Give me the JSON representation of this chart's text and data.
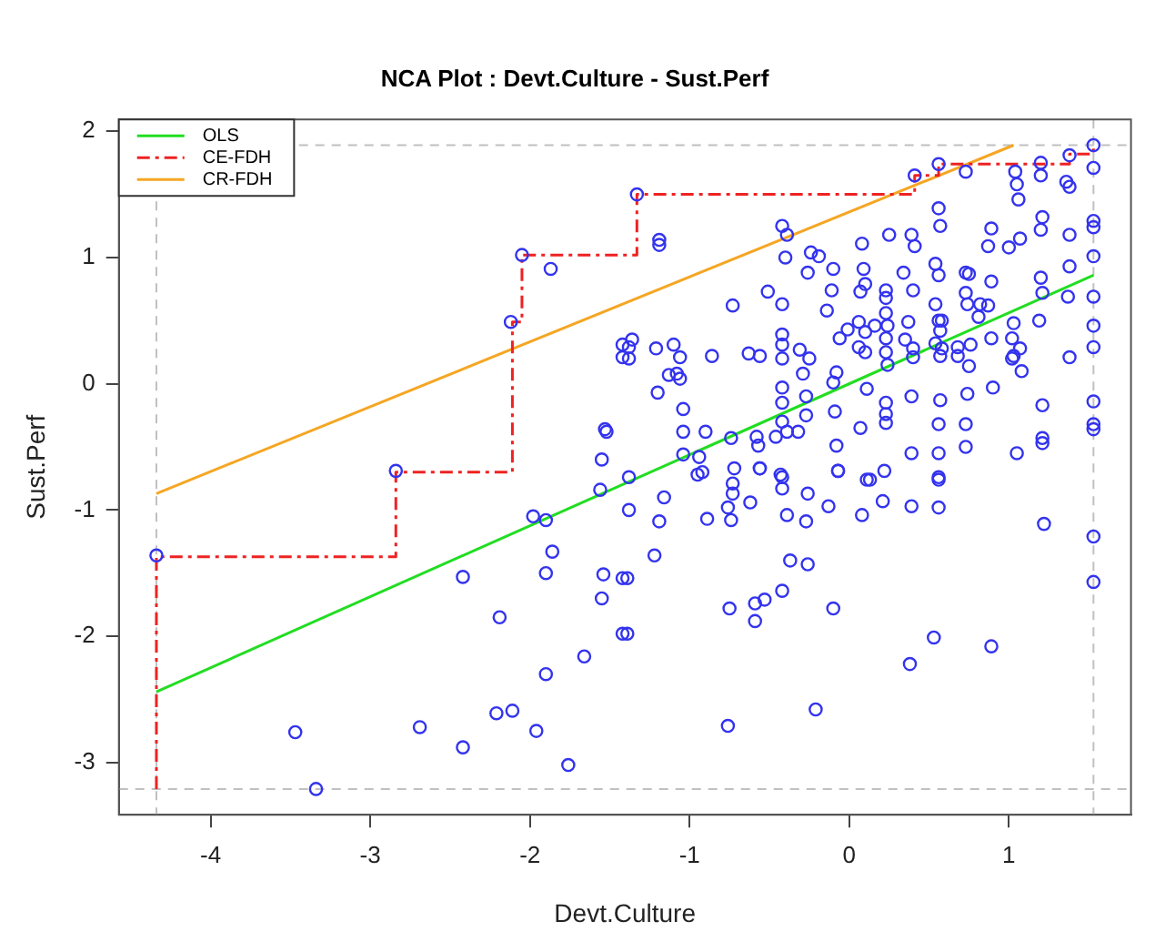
{
  "chart_data": {
    "type": "scatter",
    "title": "NCA Plot : Devt.Culture - Sust.Perf",
    "xlabel": "Devt.Culture",
    "ylabel": "Sust.Perf",
    "xlim": [
      -4.575,
      1.765
    ],
    "xticks": [
      -4,
      -3,
      -2,
      -1,
      0,
      1
    ],
    "ylim": [
      -3.414,
      2.094
    ],
    "yticks": [
      -3,
      -2,
      -1,
      0,
      1,
      2
    ],
    "grid": false,
    "legend": "top left",
    "marker": "circle",
    "ref_lines": [
      {
        "axis": "x",
        "value": -4.34,
        "color": "#c0c0c0",
        "line_style": "dashed"
      },
      {
        "axis": "x",
        "value": 1.53,
        "color": "#c0c0c0",
        "line_style": "dashed"
      },
      {
        "axis": "y",
        "value": -3.21,
        "color": "#c0c0c0",
        "line_style": "dashed"
      },
      {
        "axis": "y",
        "value": 1.89,
        "color": "#c0c0c0",
        "line_style": "dashed"
      }
    ],
    "series": [
      {
        "color": "#3333ee",
        "x": [
          -2.05,
          -1.87,
          -2.12,
          -1.42,
          -1.42,
          -1.53,
          -1.55,
          -2.84,
          -4.34,
          -1.56,
          -1.98,
          -1.9,
          -1.86,
          -2.42,
          -1.9,
          -1.54,
          -1.55,
          -2.19,
          -1.66,
          -1.9,
          -3.47,
          -2.69,
          -2.42,
          -2.21,
          -2.11,
          -1.96,
          -1.76,
          -3.34,
          -1.42,
          -1.42,
          -1.38,
          -1.16,
          -1.38,
          -1.19,
          -1.22,
          -1.39,
          -1.39,
          -0.95,
          -0.73,
          -0.73,
          -0.76,
          -0.89,
          -0.74,
          -0.62,
          -0.56,
          -0.42,
          -0.42,
          -0.26,
          -0.39,
          -0.27,
          -0.13,
          -0.07,
          0.13,
          0.22,
          0.08,
          0.21,
          0.39,
          0.56,
          0.56,
          -0.37,
          -0.26,
          -0.42,
          -0.53,
          -0.59,
          -0.59,
          -0.75,
          -0.1,
          0.53,
          0.38,
          0.89,
          1.22,
          1.53,
          1.53,
          -0.21,
          -0.76,
          -1.33,
          -1.19,
          -1.19,
          -0.42,
          -0.39,
          0.41,
          0.56,
          0.73,
          1.04,
          1.05,
          1.06,
          1.2,
          1.2,
          1.36,
          1.38,
          1.38,
          1.53,
          1.53,
          0.56,
          0.57,
          0.89,
          0.87,
          1.0,
          1.07,
          1.21,
          1.2,
          1.38,
          1.53,
          1.53,
          1.53,
          1.38,
          1.2,
          1.21,
          1.37,
          1.53,
          1.19,
          1.03,
          1.53,
          1.53,
          1.38,
          1.53,
          1.53,
          1.53,
          1.21,
          1.21,
          1.21,
          1.05,
          0.9,
          0.74,
          0.73,
          0.73,
          0.56,
          0.56,
          0.56,
          0.39,
          0.39,
          0.57,
          0.23,
          0.23,
          0.23,
          0.11,
          0.07,
          -0.07,
          -0.08,
          -0.09,
          -0.08,
          -0.1,
          -0.27,
          -0.27,
          -0.42,
          -0.42,
          -0.42,
          -0.46,
          -0.39,
          -0.32,
          -0.58,
          -0.57,
          -0.74,
          -0.9,
          -1.04,
          -1.04,
          -1.04,
          -0.94,
          -0.92,
          -1.2,
          -1.13,
          -1.08,
          -1.06,
          -1.38,
          -1.36,
          -1.38,
          -1.21,
          -1.1,
          -1.06,
          -0.86,
          -0.63,
          -0.56,
          -0.73,
          -0.51,
          -0.42,
          -0.42,
          -0.42,
          -0.42,
          -0.31,
          -0.25,
          -0.29,
          -0.14,
          -0.11,
          -0.26,
          -0.24,
          -0.19,
          -0.4,
          -0.1,
          0.08,
          0.09,
          0.1,
          0.07,
          0.25,
          0.39,
          0.41,
          0.34,
          0.4,
          0.23,
          0.23,
          0.23,
          0.24,
          0.16,
          0.06,
          0.06,
          0.1,
          0.1,
          -0.01,
          -0.06,
          0.23,
          0.23,
          0.24,
          0.37,
          0.35,
          0.4,
          0.54,
          0.56,
          0.54,
          0.56,
          0.58,
          0.57,
          0.54,
          0.57,
          0.68,
          0.73,
          0.75,
          0.73,
          0.74,
          0.81,
          0.82,
          0.87,
          0.89,
          0.89,
          1.02,
          1.03,
          1.07,
          1.08,
          1.02,
          0.76,
          0.75,
          0.68,
          0.4,
          0.58,
          -0.72,
          -0.56,
          -0.43,
          0.11,
          -1.52
        ],
        "values": [
          1.02,
          0.91,
          0.49,
          0.31,
          0.21,
          -0.36,
          -0.6,
          -0.69,
          -1.36,
          -0.84,
          -1.05,
          -1.08,
          -1.33,
          -1.53,
          -1.5,
          -1.51,
          -1.7,
          -1.85,
          -2.16,
          -2.3,
          -2.76,
          -2.72,
          -2.88,
          -2.61,
          -2.59,
          -2.75,
          -3.02,
          -3.21,
          -1.54,
          -1.98,
          -0.74,
          -0.9,
          -1.0,
          -1.09,
          -1.36,
          -1.54,
          -1.98,
          -0.72,
          -0.79,
          -0.87,
          -0.98,
          -1.07,
          -1.08,
          -0.94,
          -0.67,
          -0.74,
          -0.83,
          -0.87,
          -1.04,
          -1.09,
          -0.97,
          -0.69,
          -0.76,
          -0.69,
          -1.04,
          -0.93,
          -0.97,
          -0.76,
          -0.98,
          -1.4,
          -1.43,
          -1.64,
          -1.71,
          -1.74,
          -1.88,
          -1.78,
          -1.78,
          -2.01,
          -2.22,
          -2.08,
          -1.11,
          -1.21,
          -1.57,
          -2.58,
          -2.71,
          1.5,
          1.14,
          1.1,
          1.25,
          1.18,
          1.65,
          1.74,
          1.68,
          1.68,
          1.58,
          1.46,
          1.75,
          1.65,
          1.6,
          1.56,
          1.81,
          1.89,
          1.71,
          1.39,
          1.25,
          1.23,
          1.09,
          1.08,
          1.15,
          1.32,
          1.22,
          1.18,
          1.29,
          1.24,
          1.01,
          0.93,
          0.84,
          0.72,
          0.69,
          0.69,
          0.5,
          0.48,
          0.46,
          0.29,
          0.21,
          -0.14,
          -0.32,
          -0.36,
          -0.17,
          -0.43,
          -0.47,
          -0.55,
          -0.03,
          -0.08,
          -0.32,
          -0.5,
          -0.32,
          -0.55,
          -0.74,
          -0.55,
          -0.1,
          -0.13,
          -0.15,
          -0.24,
          -0.31,
          -0.04,
          -0.35,
          -0.69,
          -0.49,
          -0.22,
          0.09,
          0.01,
          -0.1,
          -0.25,
          -0.03,
          -0.15,
          -0.3,
          -0.42,
          -0.38,
          -0.38,
          -0.42,
          -0.49,
          -0.43,
          -0.38,
          -0.38,
          -0.2,
          -0.56,
          -0.58,
          -0.7,
          -0.07,
          0.07,
          0.08,
          0.04,
          0.29,
          0.35,
          0.2,
          0.28,
          0.31,
          0.21,
          0.22,
          0.24,
          0.22,
          0.62,
          0.73,
          0.63,
          0.39,
          0.31,
          0.2,
          0.27,
          0.2,
          0.08,
          0.58,
          0.74,
          0.88,
          1.04,
          1.01,
          1.0,
          0.91,
          1.11,
          0.91,
          0.79,
          0.73,
          1.18,
          1.18,
          1.09,
          0.88,
          0.74,
          0.74,
          0.68,
          0.56,
          0.46,
          0.46,
          0.49,
          0.29,
          0.25,
          0.41,
          0.43,
          0.36,
          0.36,
          0.25,
          0.15,
          0.49,
          0.35,
          0.21,
          0.95,
          0.86,
          0.63,
          0.5,
          0.5,
          0.42,
          0.32,
          0.22,
          0.29,
          0.88,
          0.87,
          0.72,
          0.63,
          0.53,
          0.63,
          0.62,
          0.36,
          0.81,
          0.36,
          0.22,
          0.28,
          0.1,
          0.2,
          0.31,
          0.14,
          0.22,
          0.28,
          0.28,
          -0.67,
          -0.67,
          -0.72,
          -0.76,
          -0.38
        ]
      },
      {
        "type": "line",
        "name": "OLS",
        "color": "#22dd22",
        "marker": "none",
        "line_style": "solid",
        "x": [
          -4.34,
          1.53
        ],
        "values": [
          -2.44,
          0.86
        ]
      },
      {
        "type": "line",
        "name": "CE-FDH",
        "color": "#ee2222",
        "marker": "none",
        "line_style": "dashed",
        "x": [
          -4.34,
          -4.34,
          -2.84,
          -2.84,
          -2.11,
          -2.11,
          -2.05,
          -2.05,
          -1.33,
          -1.33,
          0.41,
          0.41,
          0.56,
          0.56,
          1.38,
          1.38,
          1.53,
          1.53
        ],
        "values": [
          -3.21,
          -1.37,
          -1.37,
          -0.7,
          -0.7,
          0.49,
          0.49,
          1.02,
          1.02,
          1.5,
          1.5,
          1.65,
          1.65,
          1.74,
          1.74,
          1.82,
          1.82,
          1.89
        ]
      },
      {
        "type": "line",
        "name": "CR-FDH",
        "color": "#f5a623",
        "marker": "none",
        "line_style": "solid",
        "x": [
          -4.34,
          1.03
        ],
        "values": [
          -0.87,
          1.89
        ]
      }
    ]
  }
}
